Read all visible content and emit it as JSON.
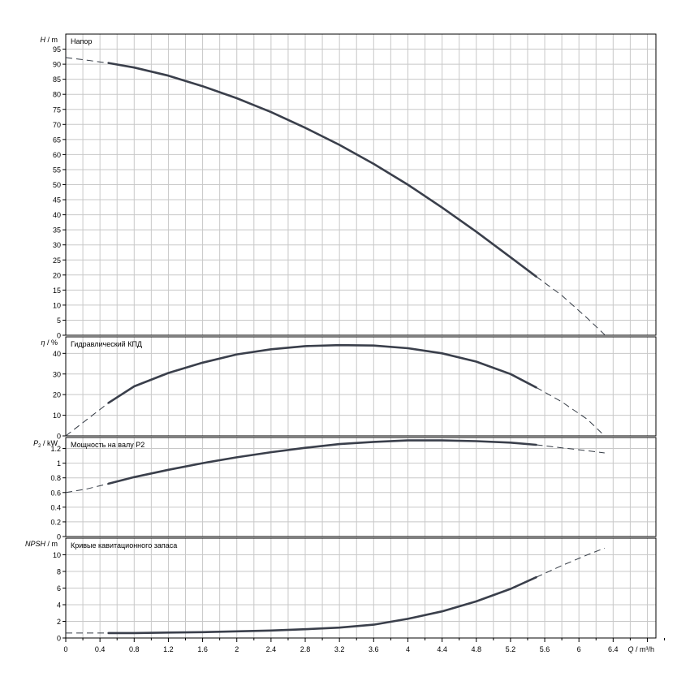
{
  "chart_data": [
    {
      "type": "line",
      "ylabel": {
        "sym": "H",
        "unit": "m"
      },
      "title": "Напор",
      "ylim": [
        0,
        100
      ],
      "y_ticks": [
        0,
        5,
        10,
        15,
        20,
        25,
        30,
        35,
        40,
        45,
        50,
        55,
        60,
        65,
        70,
        75,
        80,
        85,
        90,
        95
      ],
      "series": [
        {
          "dashed_low": [
            [
              0,
              92.2
            ],
            [
              0.5,
              90.4
            ]
          ],
          "solid": [
            [
              0.5,
              90.4
            ],
            [
              0.8,
              88.9
            ],
            [
              1.2,
              86.2
            ],
            [
              1.6,
              82.7
            ],
            [
              2.0,
              78.7
            ],
            [
              2.4,
              74.1
            ],
            [
              2.8,
              68.9
            ],
            [
              3.2,
              63.2
            ],
            [
              3.6,
              56.9
            ],
            [
              4.0,
              50.0
            ],
            [
              4.4,
              42.4
            ],
            [
              4.8,
              34.4
            ],
            [
              5.2,
              25.9
            ],
            [
              5.5,
              19.5
            ]
          ],
          "dashed_high": [
            [
              5.5,
              19.5
            ],
            [
              5.8,
              13.2
            ],
            [
              6.1,
              5.6
            ],
            [
              6.3,
              0.2
            ]
          ]
        }
      ]
    },
    {
      "type": "line",
      "ylabel": {
        "sym": "η",
        "unit": "%"
      },
      "title": "Гидравлический КПД",
      "ylim": [
        0,
        48
      ],
      "y_ticks": [
        0,
        10,
        20,
        30,
        40
      ],
      "series": [
        {
          "dashed_low": [
            [
              0,
              0
            ],
            [
              0.25,
              8
            ],
            [
              0.5,
              16
            ]
          ],
          "solid": [
            [
              0.5,
              16
            ],
            [
              0.8,
              24
            ],
            [
              1.2,
              30.5
            ],
            [
              1.6,
              35.5
            ],
            [
              2.0,
              39.5
            ],
            [
              2.4,
              42.0
            ],
            [
              2.8,
              43.5
            ],
            [
              3.2,
              44.0
            ],
            [
              3.6,
              43.8
            ],
            [
              4.0,
              42.5
            ],
            [
              4.4,
              40.0
            ],
            [
              4.8,
              36.0
            ],
            [
              5.2,
              30.0
            ],
            [
              5.5,
              23.5
            ]
          ],
          "dashed_high": [
            [
              5.5,
              23.5
            ],
            [
              5.8,
              16.5
            ],
            [
              6.1,
              8.0
            ],
            [
              6.3,
              0
            ]
          ]
        }
      ]
    },
    {
      "type": "line",
      "ylabel": {
        "sym": "P",
        "sub": "2",
        "unit": "kW"
      },
      "title": "Мощность на валу P2",
      "ylim": [
        0,
        1.35
      ],
      "y_ticks": [
        0,
        0.2,
        0.4,
        0.6,
        0.8,
        1.0,
        1.2
      ],
      "y_tick_labels": [
        "0",
        "0.2",
        "0.4",
        "0.6",
        "0.8",
        "1",
        "1.2"
      ],
      "series": [
        {
          "dashed_low": [
            [
              0,
              0.6
            ],
            [
              0.25,
              0.65
            ],
            [
              0.5,
              0.72
            ]
          ],
          "solid": [
            [
              0.5,
              0.72
            ],
            [
              0.8,
              0.81
            ],
            [
              1.2,
              0.91
            ],
            [
              1.6,
              1.0
            ],
            [
              2.0,
              1.08
            ],
            [
              2.4,
              1.15
            ],
            [
              2.8,
              1.21
            ],
            [
              3.2,
              1.26
            ],
            [
              3.6,
              1.29
            ],
            [
              4.0,
              1.31
            ],
            [
              4.4,
              1.31
            ],
            [
              4.8,
              1.3
            ],
            [
              5.2,
              1.28
            ],
            [
              5.5,
              1.25
            ]
          ],
          "dashed_high": [
            [
              5.5,
              1.25
            ],
            [
              5.8,
              1.21
            ],
            [
              6.1,
              1.17
            ],
            [
              6.3,
              1.14
            ]
          ]
        }
      ]
    },
    {
      "type": "line",
      "ylabel": {
        "sym": "NPSH",
        "unit": "m"
      },
      "title": "Кривые кавитационного запаса",
      "ylim": [
        0,
        12
      ],
      "y_ticks": [
        0,
        2,
        4,
        6,
        8,
        10
      ],
      "series": [
        {
          "dashed_low": [
            [
              0,
              0.6
            ],
            [
              0.5,
              0.6
            ]
          ],
          "solid": [
            [
              0.5,
              0.6
            ],
            [
              0.8,
              0.6
            ],
            [
              1.2,
              0.65
            ],
            [
              1.6,
              0.7
            ],
            [
              2.0,
              0.8
            ],
            [
              2.4,
              0.9
            ],
            [
              2.8,
              1.05
            ],
            [
              3.2,
              1.25
            ],
            [
              3.6,
              1.6
            ],
            [
              4.0,
              2.3
            ],
            [
              4.4,
              3.2
            ],
            [
              4.8,
              4.4
            ],
            [
              5.2,
              5.9
            ],
            [
              5.5,
              7.3
            ]
          ],
          "dashed_high": [
            [
              5.5,
              7.3
            ],
            [
              5.8,
              8.7
            ],
            [
              6.1,
              10.0
            ],
            [
              6.3,
              10.8
            ]
          ]
        }
      ]
    }
  ],
  "x_axis": {
    "label": "Q / m³/h",
    "xlim": [
      0,
      6.9
    ],
    "ticks": [
      0,
      0.4,
      0.8,
      1.2,
      1.6,
      2,
      2.4,
      2.8,
      3.2,
      3.6,
      4,
      4.4,
      4.8,
      5.2,
      5.6,
      6,
      6.4
    ],
    "tick_labels": [
      "0",
      "0.4",
      "0.8",
      "1.2",
      "1.6",
      "2",
      "2.4",
      "2.8",
      "3.2",
      "3.6",
      "4",
      "4.4",
      "4.8",
      "5.2",
      "5.6",
      "6",
      "6.4"
    ],
    "grid_step": 0.2,
    "grid": true
  }
}
